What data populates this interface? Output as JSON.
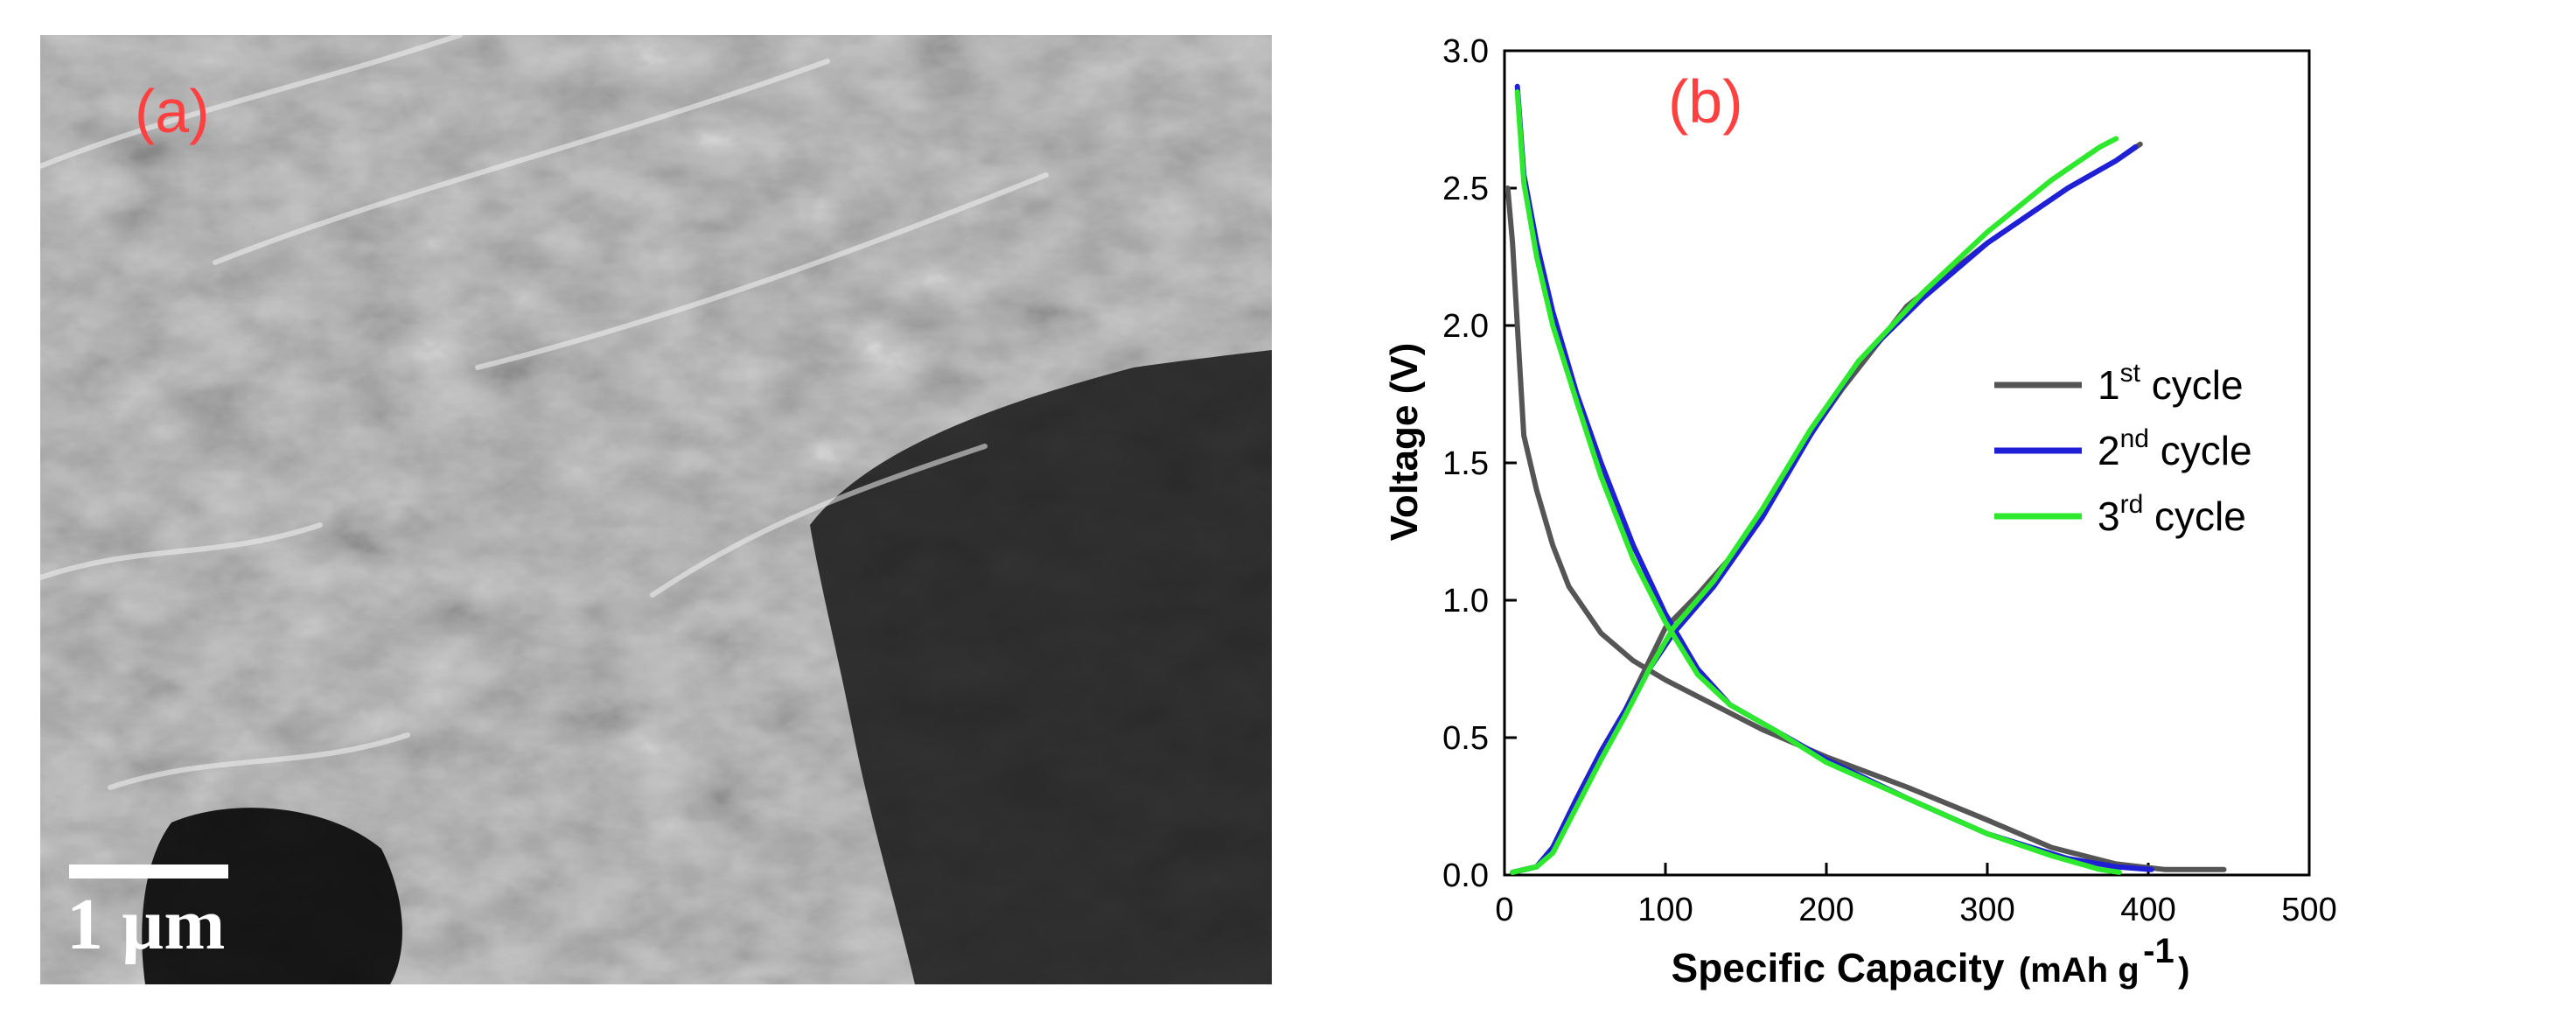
{
  "panel_a": {
    "label": "(a)",
    "scale_bar_label": "1 µm"
  },
  "panel_b": {
    "label": "(b)"
  },
  "chart_data": {
    "type": "line",
    "xlabel": "Specific Capacity",
    "xlabel_unit": "(mAh g",
    "xlabel_unit_sup": "-1",
    "xlabel_unit_close": ")",
    "ylabel": "Voltage (V)",
    "xlim": [
      0,
      500
    ],
    "ylim": [
      0,
      3.0
    ],
    "x_ticks": [
      "0",
      "100",
      "200",
      "300",
      "400",
      "500"
    ],
    "y_ticks": [
      "0.0",
      "0.5",
      "1.0",
      "1.5",
      "2.0",
      "2.5",
      "3.0"
    ],
    "legend_position": "right",
    "series": [
      {
        "legend_base": "1",
        "legend_sup": "st",
        "legend_rest": " cycle",
        "color": "#555555",
        "discharge": [
          [
            2,
            2.5
          ],
          [
            5,
            2.3
          ],
          [
            8,
            2.0
          ],
          [
            12,
            1.6
          ],
          [
            20,
            1.4
          ],
          [
            30,
            1.2
          ],
          [
            40,
            1.05
          ],
          [
            60,
            0.88
          ],
          [
            80,
            0.78
          ],
          [
            100,
            0.71
          ],
          [
            130,
            0.62
          ],
          [
            160,
            0.53
          ],
          [
            200,
            0.43
          ],
          [
            250,
            0.32
          ],
          [
            300,
            0.2
          ],
          [
            340,
            0.1
          ],
          [
            380,
            0.04
          ],
          [
            410,
            0.02
          ],
          [
            447,
            0.02
          ]
        ],
        "charge": [
          [
            5,
            0.01
          ],
          [
            20,
            0.03
          ],
          [
            30,
            0.1
          ],
          [
            45,
            0.28
          ],
          [
            60,
            0.45
          ],
          [
            75,
            0.6
          ],
          [
            90,
            0.78
          ],
          [
            100,
            0.9
          ],
          [
            120,
            1.02
          ],
          [
            150,
            1.22
          ],
          [
            180,
            1.52
          ],
          [
            210,
            1.77
          ],
          [
            250,
            2.07
          ],
          [
            300,
            2.3
          ],
          [
            350,
            2.5
          ],
          [
            380,
            2.6
          ],
          [
            395,
            2.66
          ]
        ]
      },
      {
        "legend_base": "2",
        "legend_sup": "nd",
        "legend_rest": " cycle",
        "color": "#1f1fd6",
        "discharge": [
          [
            8,
            2.87
          ],
          [
            12,
            2.55
          ],
          [
            20,
            2.3
          ],
          [
            30,
            2.05
          ],
          [
            45,
            1.75
          ],
          [
            60,
            1.5
          ],
          [
            80,
            1.2
          ],
          [
            100,
            0.95
          ],
          [
            120,
            0.75
          ],
          [
            140,
            0.62
          ],
          [
            170,
            0.52
          ],
          [
            200,
            0.42
          ],
          [
            250,
            0.28
          ],
          [
            300,
            0.15
          ],
          [
            350,
            0.06
          ],
          [
            380,
            0.03
          ],
          [
            402,
            0.02
          ]
        ],
        "charge": [
          [
            5,
            0.01
          ],
          [
            20,
            0.03
          ],
          [
            30,
            0.1
          ],
          [
            45,
            0.28
          ],
          [
            60,
            0.45
          ],
          [
            75,
            0.6
          ],
          [
            90,
            0.75
          ],
          [
            105,
            0.88
          ],
          [
            130,
            1.05
          ],
          [
            160,
            1.3
          ],
          [
            190,
            1.6
          ],
          [
            220,
            1.87
          ],
          [
            260,
            2.1
          ],
          [
            300,
            2.3
          ],
          [
            350,
            2.5
          ],
          [
            380,
            2.6
          ],
          [
            392,
            2.65
          ]
        ]
      },
      {
        "legend_base": "3",
        "legend_sup": "rd",
        "legend_rest": " cycle",
        "color": "#2ee82e",
        "discharge": [
          [
            8,
            2.85
          ],
          [
            12,
            2.52
          ],
          [
            20,
            2.25
          ],
          [
            30,
            2.0
          ],
          [
            45,
            1.72
          ],
          [
            60,
            1.45
          ],
          [
            80,
            1.15
          ],
          [
            100,
            0.92
          ],
          [
            120,
            0.73
          ],
          [
            140,
            0.62
          ],
          [
            170,
            0.52
          ],
          [
            200,
            0.41
          ],
          [
            250,
            0.28
          ],
          [
            300,
            0.15
          ],
          [
            340,
            0.07
          ],
          [
            370,
            0.02
          ],
          [
            382,
            0.01
          ]
        ],
        "charge": [
          [
            5,
            0.01
          ],
          [
            20,
            0.03
          ],
          [
            30,
            0.08
          ],
          [
            45,
            0.25
          ],
          [
            60,
            0.42
          ],
          [
            75,
            0.58
          ],
          [
            90,
            0.75
          ],
          [
            105,
            0.9
          ],
          [
            130,
            1.07
          ],
          [
            160,
            1.33
          ],
          [
            190,
            1.62
          ],
          [
            220,
            1.87
          ],
          [
            260,
            2.12
          ],
          [
            300,
            2.34
          ],
          [
            340,
            2.53
          ],
          [
            370,
            2.65
          ],
          [
            380,
            2.68
          ]
        ]
      }
    ]
  }
}
